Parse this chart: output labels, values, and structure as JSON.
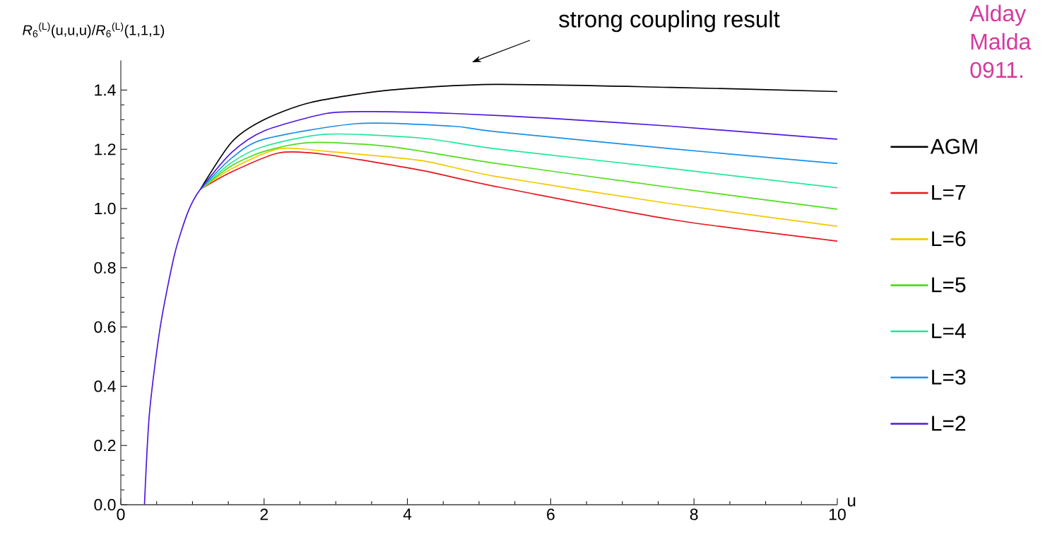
{
  "chart_data": {
    "type": "line",
    "xlabel": "u",
    "ylabel": "*R*$_{6}$$^{(L)}$(u,u,u)/*R*$_{6}$$^{(L)}$(1,1,1)",
    "xlim": [
      0,
      10
    ],
    "ylim": [
      0,
      1.5
    ],
    "xticks": [
      0,
      2,
      4,
      6,
      8,
      10
    ],
    "yticks": [
      {
        "value": 0,
        "label": "0.0"
      },
      0.2,
      0.4,
      0.6,
      0.8,
      {
        "value": 1,
        "label": "1.0"
      },
      1.2,
      1.4
    ],
    "legend": "right",
    "marker": "none",
    "line_style": "solid",
    "annotations": [
      "strong coupling result",
      "Alday",
      "Malda",
      "0911."
    ],
    "series": [
      {
        "name": "AGM",
        "color": "#000000",
        "x": [
          1.11,
          1.55,
          2.0,
          2.65,
          3.76,
          5.22,
          7.68,
          10
        ],
        "values": [
          1.065,
          1.225,
          1.3,
          1.358,
          1.4,
          1.419,
          1.409,
          1.395
        ]
      },
      {
        "name": "L=7",
        "color": "#e8141c",
        "x": [
          1.11,
          1.55,
          2.21,
          2.87,
          4.19,
          5.22,
          7.68,
          10
        ],
        "values": [
          1.065,
          1.124,
          1.188,
          1.182,
          1.129,
          1.075,
          0.963,
          0.89
        ]
      },
      {
        "name": "L=6",
        "color": "#f5c800",
        "x": [
          1.11,
          1.55,
          2.21,
          2.87,
          4.19,
          5.22,
          7.68,
          10
        ],
        "values": [
          1.065,
          1.135,
          1.202,
          1.193,
          1.162,
          1.109,
          1.016,
          0.94
        ]
      },
      {
        "name": "L=5",
        "color": "#4ede1c",
        "x": [
          1.11,
          1.55,
          2.0,
          2.65,
          3.76,
          5.22,
          7.68,
          10
        ],
        "values": [
          1.065,
          1.145,
          1.193,
          1.223,
          1.209,
          1.153,
          1.071,
          0.998
        ]
      },
      {
        "name": "L=4",
        "color": "#21e89a",
        "x": [
          1.11,
          1.55,
          2.0,
          2.87,
          4.19,
          5.22,
          7.68,
          10
        ],
        "values": [
          1.065,
          1.156,
          1.21,
          1.251,
          1.238,
          1.202,
          1.135,
          1.07
        ]
      },
      {
        "name": "L=3",
        "color": "#1a8fe8",
        "x": [
          1.11,
          1.55,
          2.0,
          3.31,
          4.63,
          5.22,
          7.68,
          10
        ],
        "values": [
          1.065,
          1.171,
          1.234,
          1.287,
          1.278,
          1.26,
          1.202,
          1.152
        ]
      },
      {
        "name": "L=2",
        "color": "#5018e0",
        "x": [
          0.33,
          0.4,
          0.55,
          0.75,
          0.94,
          1.11,
          1.55,
          2.0,
          2.87,
          3.54,
          4.63,
          5.96,
          7.68,
          10
        ],
        "values": [
          0,
          0.31,
          0.6,
          0.845,
          0.99,
          1.065,
          1.19,
          1.262,
          1.321,
          1.327,
          1.321,
          1.305,
          1.278,
          1.234
        ]
      }
    ]
  }
}
